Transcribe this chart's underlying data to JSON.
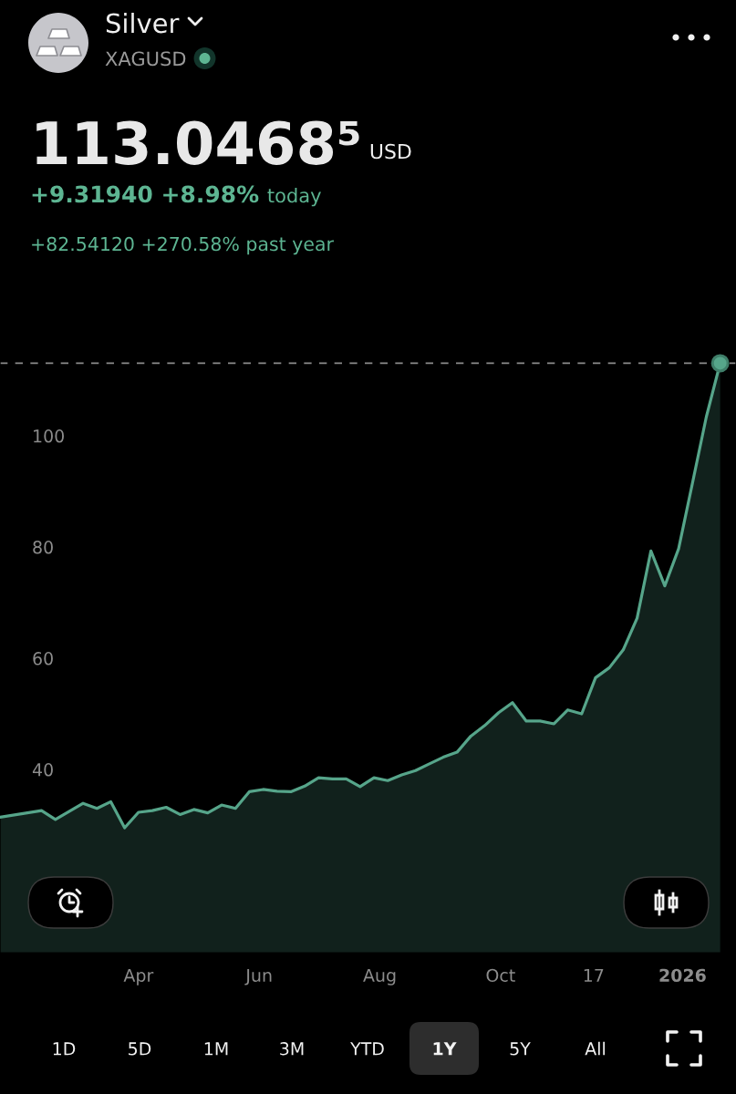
{
  "chart_data": {
    "type": "area",
    "title": "Silver",
    "subtitle": "XAGUSD",
    "annotations": [
      "113.0468⁵",
      "USD",
      "+9.31940 +8.98%",
      "today",
      "+82.54120 +270.58% past year",
      "1D",
      "5D",
      "1M",
      "3M",
      "YTD",
      "1Y",
      "5Y",
      "All"
    ],
    "x": [
      "2025-01-21",
      "2025-02-11",
      "2025-02-18",
      "2025-03-04",
      "2025-03-11",
      "2025-03-18",
      "2025-03-25",
      "2025-04-01",
      "2025-04-08",
      "2025-04-15",
      "2025-04-22",
      "2025-04-29",
      "2025-05-06",
      "2025-05-13",
      "2025-05-20",
      "2025-05-27",
      "2025-06-03",
      "2025-06-10",
      "2025-06-17",
      "2025-06-24",
      "2025-07-01",
      "2025-07-08",
      "2025-07-15",
      "2025-07-22",
      "2025-07-29",
      "2025-08-05",
      "2025-08-12",
      "2025-08-19",
      "2025-08-26",
      "2025-09-02",
      "2025-09-09",
      "2025-09-16",
      "2025-09-23",
      "2025-09-30",
      "2025-10-07",
      "2025-10-14",
      "2025-10-21",
      "2025-10-28",
      "2025-11-04",
      "2025-11-11",
      "2025-11-18",
      "2025-11-25",
      "2025-12-02",
      "2025-12-09",
      "2025-12-16",
      "2025-12-23",
      "2025-12-30",
      "2026-01-06",
      "2026-01-13",
      "2026-01-20"
    ],
    "series": [
      {
        "color": "#56a58a",
        "values": [
          31.4,
          32.6,
          31.0,
          33.9,
          33.0,
          34.2,
          29.5,
          32.3,
          32.6,
          33.2,
          31.9,
          32.8,
          32.2,
          33.6,
          33.0,
          36.0,
          36.4,
          36.1,
          36.0,
          37.0,
          38.5,
          38.3,
          38.3,
          36.9,
          38.5,
          38.0,
          39.0,
          39.8,
          41.0,
          42.2,
          43.1,
          46.0,
          47.9,
          50.2,
          52.0,
          48.7,
          48.7,
          48.2,
          50.7,
          50.0,
          56.5,
          58.3,
          61.5,
          67.2,
          79.3,
          73.0,
          79.7,
          91.5,
          103.4,
          113.04685
        ]
      },
      {
        "type": "scatter",
        "x": [
          "2026-01-20"
        ],
        "color": "#56a58a",
        "values": [
          113.04685
        ]
      }
    ],
    "xlim": [
      "2025-01-21",
      "2026-01-28"
    ],
    "xticks": [
      {
        "value": "2025-04-01",
        "label": "Apr"
      },
      {
        "value": "2025-06-01",
        "label": "Jun"
      },
      {
        "value": "2025-08-01",
        "label": "Aug"
      },
      {
        "value": "2025-10-01",
        "label": "Oct"
      },
      {
        "value": "2025-11-17",
        "label": "17"
      },
      {
        "value": "2026-01-01",
        "label": "2026"
      }
    ],
    "ylim": [
      7,
      129
    ],
    "yticks": [
      40,
      60,
      80,
      100
    ],
    "ref_lines": [
      {
        "axis": "y",
        "value": 113.04685,
        "color": "#8c8c8c",
        "line_style": "dashed"
      }
    ],
    "grid": false
  }
}
